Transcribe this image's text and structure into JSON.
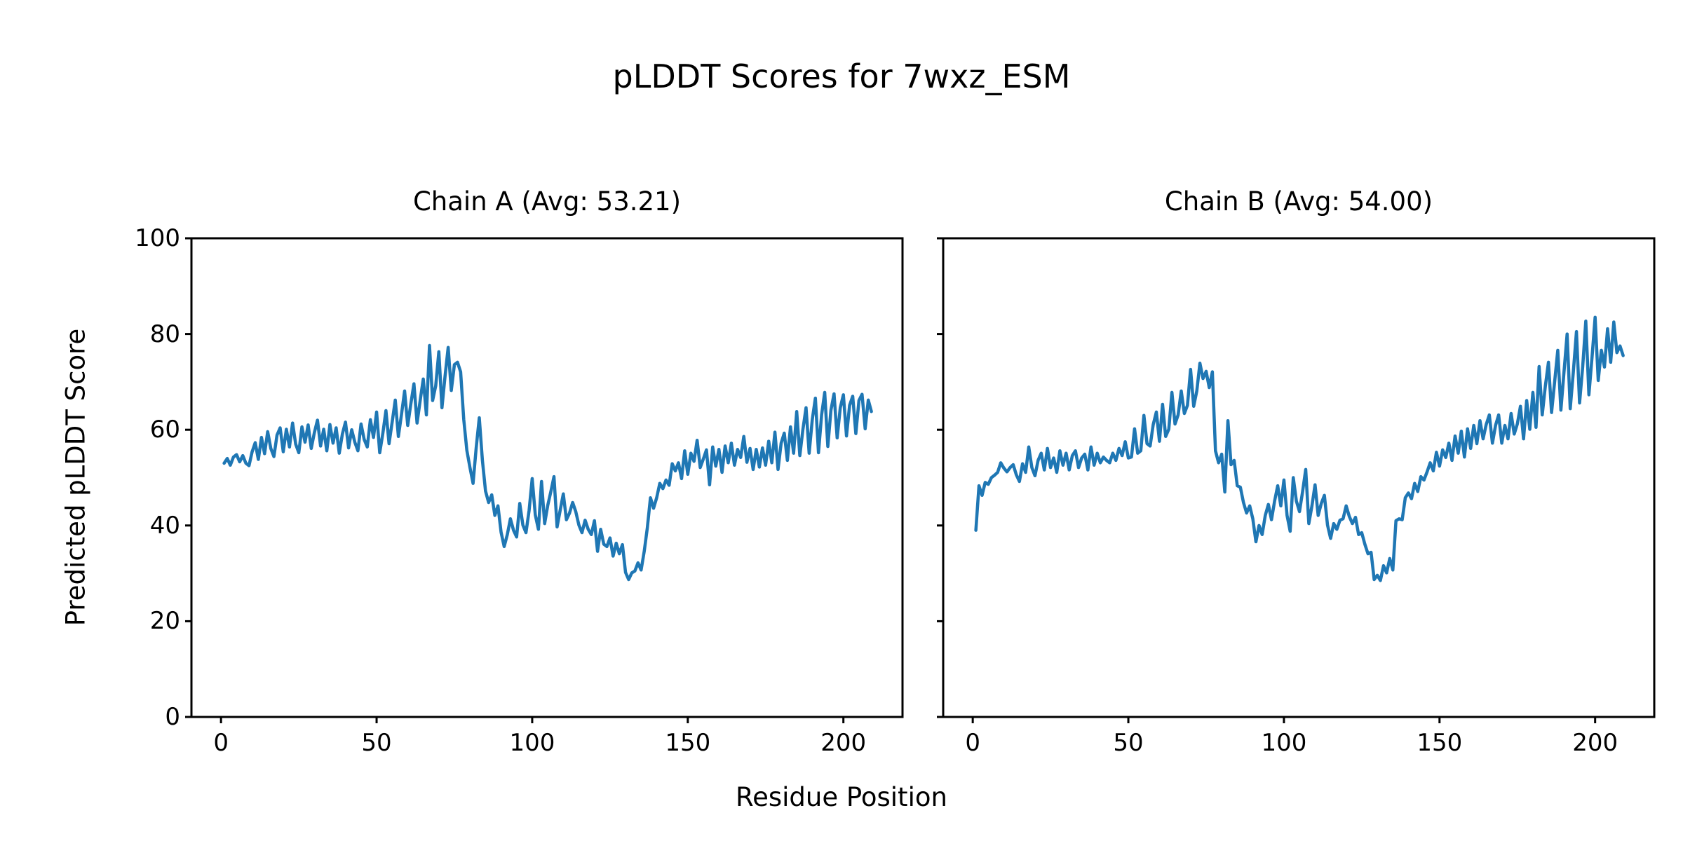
{
  "figure": {
    "title": "pLDDT Scores for 7wxz_ESM"
  },
  "chart_data": {
    "type": "line",
    "title": "pLDDT Scores for 7wxz_ESM",
    "xlabel": "Residue Position",
    "ylabel": "Predicted pLDDT Score",
    "line_color": "#1f77b4",
    "axis_color": "#000000",
    "grid": false,
    "legend": "none",
    "xlim": [
      -9.5,
      219
    ],
    "ylim": [
      0,
      100
    ],
    "xticks": [
      0,
      50,
      100,
      150,
      200
    ],
    "yticks": [
      0,
      20,
      40,
      60,
      80,
      100
    ],
    "subplots": [
      {
        "title": "Chain A (Avg: 53.21)",
        "series_name": "Chain A pLDDT",
        "x_start": 1,
        "values": [
          53.0,
          54.0,
          52.6,
          54.3,
          54.8,
          53.3,
          54.6,
          53.0,
          52.5,
          55.4,
          57.3,
          53.8,
          58.4,
          55.0,
          59.6,
          56.1,
          54.4,
          58.9,
          60.4,
          55.4,
          60.1,
          56.4,
          61.4,
          57.0,
          55.2,
          60.6,
          57.4,
          61.0,
          56.1,
          59.4,
          62.0,
          56.6,
          60.1,
          55.6,
          61.1,
          57.2,
          60.4,
          55.1,
          59.1,
          61.6,
          56.2,
          60.0,
          57.4,
          55.6,
          61.2,
          58.0,
          56.4,
          62.1,
          58.4,
          63.7,
          55.2,
          59.2,
          64.0,
          57.1,
          61.6,
          66.2,
          58.6,
          63.2,
          68.1,
          60.9,
          65.4,
          69.6,
          61.4,
          66.1,
          70.6,
          63.1,
          77.6,
          66.1,
          69.2,
          76.3,
          64.6,
          71.2,
          77.2,
          68.2,
          73.6,
          74.1,
          72.1,
          62.2,
          55.7,
          52.1,
          48.8,
          56.2,
          62.5,
          53.6,
          47.2,
          44.8,
          46.4,
          42.1,
          44.1,
          38.6,
          35.6,
          38.1,
          41.4,
          39.0,
          37.6,
          44.6,
          40.1,
          38.5,
          43.1,
          49.8,
          42.2,
          39.2,
          49.2,
          40.4,
          44.2,
          47.1,
          50.2,
          39.7,
          43.2,
          46.6,
          41.2,
          42.6,
          44.8,
          42.9,
          40.1,
          38.5,
          41.1,
          39.2,
          38.1,
          41.0,
          34.6,
          39.2,
          36.1,
          35.6,
          37.4,
          33.6,
          36.3,
          34.1,
          36.0,
          30.2,
          28.7,
          30.1,
          30.5,
          32.2,
          30.7,
          34.6,
          39.5,
          45.8,
          43.6,
          45.8,
          48.8,
          47.7,
          49.5,
          48.4,
          52.9,
          51.4,
          53.1,
          49.8,
          55.6,
          50.7,
          55.1,
          53.4,
          57.8,
          52.1,
          53.9,
          55.8,
          48.5,
          56.4,
          52.4,
          55.9,
          51.1,
          56.6,
          53.1,
          57.2,
          52.6,
          55.9,
          54.2,
          58.6,
          53.2,
          56.1,
          51.7,
          55.9,
          52.2,
          56.2,
          52.6,
          57.6,
          53.1,
          59.5,
          51.7,
          57.2,
          59.3,
          53.6,
          60.6,
          55.1,
          63.8,
          54.6,
          60.1,
          64.6,
          55.1,
          62.1,
          66.6,
          55.2,
          63.1,
          67.8,
          56.5,
          64.1,
          67.5,
          58.3,
          64.6,
          67.3,
          58.7,
          65.1,
          67.0,
          59.2,
          66.1,
          67.4,
          60.2,
          66.2,
          63.8
        ]
      },
      {
        "title": "Chain B (Avg: 54.00)",
        "series_name": "Chain B pLDDT",
        "x_start": 1,
        "values": [
          39.0,
          48.3,
          46.3,
          49.0,
          48.6,
          50.0,
          50.5,
          51.1,
          53.1,
          52.0,
          51.2,
          52.1,
          52.7,
          50.6,
          49.2,
          52.9,
          51.1,
          56.4,
          52.1,
          50.4,
          53.6,
          55.1,
          51.6,
          56.1,
          52.1,
          54.1,
          51.1,
          55.6,
          52.6,
          55.1,
          51.6,
          54.6,
          55.6,
          52.1,
          54.1,
          54.9,
          51.6,
          56.4,
          52.6,
          55.1,
          53.1,
          54.3,
          53.6,
          53.1,
          55.1,
          53.6,
          56.1,
          54.6,
          57.5,
          54.1,
          54.3,
          60.2,
          55.1,
          55.6,
          63.0,
          57.1,
          56.6,
          61.1,
          63.7,
          57.6,
          65.3,
          58.6,
          60.1,
          67.8,
          61.2,
          63.1,
          68.1,
          63.4,
          65.1,
          72.6,
          64.9,
          68.1,
          73.9,
          70.7,
          72.2,
          68.8,
          72.1,
          55.6,
          53.1,
          54.9,
          47.0,
          61.9,
          52.7,
          53.6,
          48.3,
          48.0,
          44.8,
          42.6,
          44.1,
          41.4,
          36.6,
          40.0,
          38.1,
          42.1,
          44.4,
          41.2,
          45.1,
          48.3,
          44.1,
          49.5,
          42.1,
          38.8,
          50.0,
          45.1,
          42.9,
          47.1,
          51.7,
          40.4,
          44.1,
          48.5,
          42.1,
          44.6,
          46.3,
          40.1,
          37.3,
          40.4,
          39.2,
          41.1,
          41.4,
          44.1,
          41.9,
          40.4,
          41.7,
          38.1,
          38.5,
          36.1,
          34.1,
          34.4,
          28.7,
          29.6,
          28.5,
          31.6,
          30.1,
          33.1,
          30.7,
          41.0,
          41.4,
          41.2,
          45.8,
          46.8,
          45.6,
          48.8,
          47.1,
          50.2,
          49.5,
          51.2,
          53.1,
          51.4,
          55.3,
          52.4,
          55.8,
          54.2,
          57.2,
          53.6,
          58.7,
          55.1,
          59.7,
          54.3,
          60.2,
          56.1,
          60.9,
          57.1,
          61.9,
          58.1,
          61.1,
          63.1,
          57.2,
          60.9,
          63.1,
          57.2,
          60.9,
          58.1,
          63.4,
          59.1,
          61.2,
          64.9,
          58.1,
          66.1,
          60.1,
          67.8,
          60.5,
          73.2,
          63.1,
          69.1,
          74.1,
          63.6,
          70.1,
          76.6,
          64.1,
          72.1,
          80.0,
          64.4,
          72.1,
          80.5,
          65.6,
          73.1,
          82.7,
          67.3,
          75.1,
          83.5,
          70.3,
          76.6,
          73.1,
          81.1,
          74.1,
          82.5,
          76.1,
          77.5,
          75.5
        ]
      }
    ]
  }
}
